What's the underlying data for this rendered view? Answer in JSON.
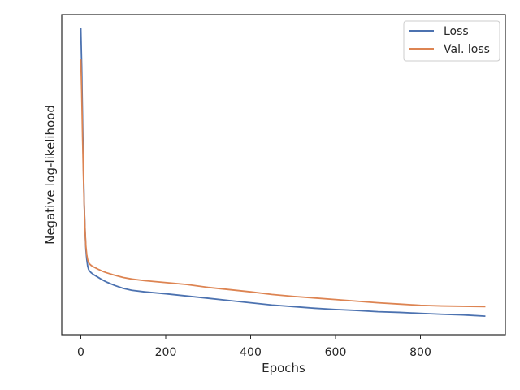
{
  "chart_data": {
    "type": "line",
    "title": "",
    "xlabel": "Epochs",
    "ylabel": "Negative log-likelihood",
    "xlim": [
      -45,
      1000
    ],
    "ylim": [
      0,
      1
    ],
    "x_ticks": [
      0,
      200,
      400,
      600,
      800
    ],
    "y_tick_labels_shown": false,
    "grid": false,
    "legend_position": "top-right",
    "series": [
      {
        "name": "Loss",
        "color": "#4c72b0",
        "x": [
          0,
          2,
          4,
          6,
          8,
          10,
          12,
          14,
          16,
          18,
          20,
          25,
          30,
          40,
          50,
          60,
          80,
          100,
          120,
          150,
          200,
          250,
          300,
          350,
          400,
          450,
          500,
          550,
          600,
          650,
          700,
          750,
          800,
          850,
          900,
          953
        ],
        "values": [
          0.957,
          0.84,
          0.68,
          0.53,
          0.41,
          0.325,
          0.265,
          0.235,
          0.215,
          0.205,
          0.2,
          0.193,
          0.188,
          0.18,
          0.172,
          0.165,
          0.154,
          0.145,
          0.139,
          0.134,
          0.128,
          0.121,
          0.114,
          0.107,
          0.1,
          0.093,
          0.088,
          0.083,
          0.079,
          0.076,
          0.072,
          0.07,
          0.067,
          0.064,
          0.062,
          0.058
        ]
      },
      {
        "name": "Val. loss",
        "color": "#dd8452",
        "x": [
          0,
          2,
          4,
          6,
          8,
          10,
          12,
          14,
          16,
          18,
          20,
          25,
          30,
          40,
          50,
          60,
          80,
          100,
          120,
          150,
          200,
          250,
          300,
          350,
          400,
          450,
          500,
          550,
          600,
          650,
          700,
          750,
          800,
          850,
          900,
          953
        ],
        "values": [
          0.86,
          0.76,
          0.62,
          0.5,
          0.4,
          0.325,
          0.275,
          0.25,
          0.235,
          0.227,
          0.222,
          0.216,
          0.212,
          0.205,
          0.199,
          0.194,
          0.186,
          0.179,
          0.174,
          0.169,
          0.163,
          0.157,
          0.148,
          0.141,
          0.134,
          0.126,
          0.12,
          0.115,
          0.11,
          0.105,
          0.1,
          0.096,
          0.092,
          0.09,
          0.089,
          0.088
        ]
      }
    ]
  }
}
